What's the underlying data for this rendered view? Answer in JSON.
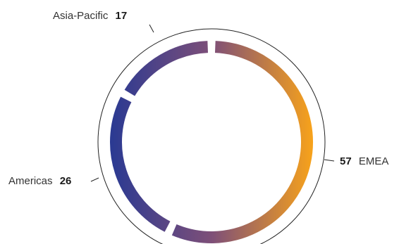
{
  "chart_data": {
    "type": "pie",
    "variant": "donut",
    "title": "",
    "categories": [
      "EMEA",
      "Americas",
      "Asia-Pacific"
    ],
    "values": [
      57,
      26,
      17
    ],
    "colors": {
      "gradient": [
        "#f7a21b",
        "#7e4f78",
        "#2b3a92"
      ]
    },
    "legend": "none"
  }
}
